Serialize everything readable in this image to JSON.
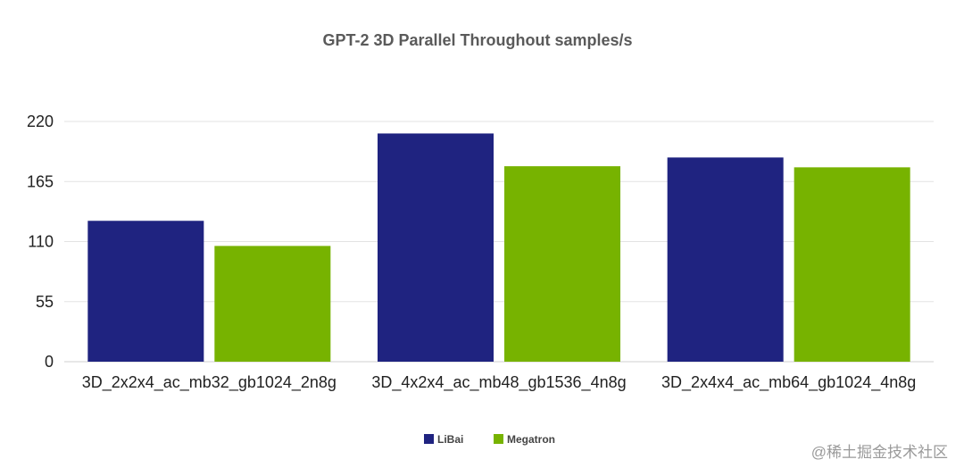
{
  "chart_data": {
    "type": "bar",
    "title": "GPT-2 3D Parallel Throughout samples/s",
    "xlabel": "",
    "ylabel": "",
    "categories": [
      "3D_2x2x4_ac_mb32_gb1024_2n8g",
      "3D_4x2x4_ac_mb48_gb1536_4n8g",
      "3D_2x4x4_ac_mb64_gb1024_4n8g"
    ],
    "series": [
      {
        "name": "LiBai",
        "color": "#1f2380",
        "values": [
          129,
          209,
          187
        ]
      },
      {
        "name": "Megatron",
        "color": "#77b300",
        "values": [
          106,
          179,
          178
        ]
      }
    ],
    "ylim": [
      0,
      220
    ],
    "yticks": [
      0,
      55,
      110,
      165,
      220
    ],
    "grid": true,
    "legend_position": "bottom-center"
  },
  "watermark": "@稀土掘金技术社区"
}
